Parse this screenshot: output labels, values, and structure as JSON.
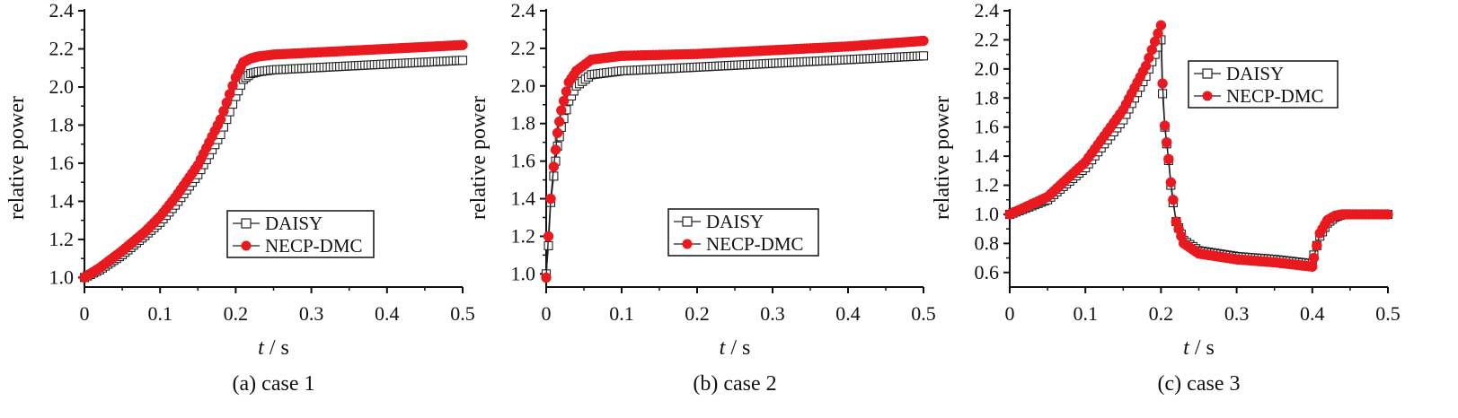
{
  "chart_data": [
    {
      "type": "line",
      "caption": "(a) case 1",
      "xlabel_var": "t",
      "xlabel_unit": " / s",
      "ylabel": "relative power",
      "xlim": [
        0,
        0.5
      ],
      "ylim": [
        0.95,
        2.4
      ],
      "xticks": [
        0,
        0.1,
        0.2,
        0.3,
        0.4,
        0.5
      ],
      "xtick_labels": [
        "0",
        "0.1",
        "0.2",
        "0.3",
        "0.4",
        "0.5"
      ],
      "yticks": [
        1.0,
        1.2,
        1.4,
        1.6,
        1.8,
        2.0,
        2.2,
        2.4
      ],
      "ytick_labels": [
        "1.0",
        "1.2",
        "1.4",
        "1.6",
        "1.8",
        "2.0",
        "2.2",
        "2.4"
      ],
      "legend_position": "lower-right",
      "series": [
        {
          "name": "DAISY",
          "marker": "open-square",
          "color": "#222222",
          "x": [
            0,
            0.02,
            0.05,
            0.08,
            0.1,
            0.12,
            0.15,
            0.18,
            0.2,
            0.21,
            0.22,
            0.23,
            0.25,
            0.3,
            0.35,
            0.4,
            0.45,
            0.5
          ],
          "y": [
            1.0,
            1.04,
            1.12,
            1.22,
            1.29,
            1.38,
            1.54,
            1.75,
            1.95,
            2.04,
            2.07,
            2.08,
            2.09,
            2.1,
            2.11,
            2.12,
            2.13,
            2.14
          ]
        },
        {
          "name": "NECP-DMC",
          "marker": "filled-circle",
          "color": "#e8191f",
          "x": [
            0,
            0.02,
            0.05,
            0.08,
            0.1,
            0.12,
            0.15,
            0.18,
            0.2,
            0.21,
            0.22,
            0.23,
            0.25,
            0.3,
            0.35,
            0.4,
            0.45,
            0.5
          ],
          "y": [
            1.0,
            1.05,
            1.14,
            1.24,
            1.32,
            1.42,
            1.59,
            1.83,
            2.05,
            2.13,
            2.15,
            2.16,
            2.17,
            2.18,
            2.19,
            2.2,
            2.21,
            2.22
          ]
        }
      ]
    },
    {
      "type": "line",
      "caption": "(b) case 2",
      "xlabel_var": "t",
      "xlabel_unit": " / s",
      "ylabel": "relative power",
      "xlim": [
        0,
        0.5
      ],
      "ylim": [
        0.93,
        2.4
      ],
      "xticks": [
        0,
        0.1,
        0.2,
        0.3,
        0.4,
        0.5
      ],
      "xtick_labels": [
        "0",
        "0.1",
        "0.2",
        "0.3",
        "0.4",
        "0.5"
      ],
      "yticks": [
        1.0,
        1.2,
        1.4,
        1.6,
        1.8,
        2.0,
        2.2,
        2.4
      ],
      "ytick_labels": [
        "1.0",
        "1.2",
        "1.4",
        "1.6",
        "1.8",
        "2.0",
        "2.2",
        "2.4"
      ],
      "legend_position": "lower-right",
      "series": [
        {
          "name": "DAISY",
          "marker": "open-square",
          "color": "#222222",
          "x": [
            0,
            0.003,
            0.006,
            0.01,
            0.015,
            0.02,
            0.03,
            0.04,
            0.06,
            0.1,
            0.2,
            0.3,
            0.4,
            0.5
          ],
          "y": [
            1.0,
            1.15,
            1.38,
            1.52,
            1.68,
            1.78,
            1.92,
            2.0,
            2.06,
            2.08,
            2.1,
            2.12,
            2.14,
            2.16
          ]
        },
        {
          "name": "NECP-DMC",
          "marker": "filled-circle",
          "color": "#e8191f",
          "x": [
            0,
            0.003,
            0.006,
            0.01,
            0.015,
            0.02,
            0.03,
            0.04,
            0.06,
            0.1,
            0.2,
            0.3,
            0.4,
            0.5
          ],
          "y": [
            0.98,
            1.2,
            1.4,
            1.57,
            1.75,
            1.87,
            2.02,
            2.08,
            2.14,
            2.16,
            2.17,
            2.19,
            2.21,
            2.24
          ]
        }
      ]
    },
    {
      "type": "line",
      "caption": "(c) case 3",
      "xlabel_var": "t",
      "xlabel_unit": " / s",
      "ylabel": "relative power",
      "xlim": [
        0,
        0.5
      ],
      "ylim": [
        0.5,
        2.4
      ],
      "xticks": [
        0,
        0.1,
        0.2,
        0.3,
        0.4,
        0.5
      ],
      "xtick_labels": [
        "0",
        "0.1",
        "0.2",
        "0.3",
        "0.4",
        "0.5"
      ],
      "yticks": [
        0.6,
        0.8,
        1.0,
        1.2,
        1.4,
        1.6,
        1.8,
        2.0,
        2.2,
        2.4
      ],
      "ytick_labels": [
        "0.6",
        "0.8",
        "1.0",
        "1.2",
        "1.4",
        "1.6",
        "1.8",
        "2.0",
        "2.2",
        "2.4"
      ],
      "legend_position": "top-right",
      "series": [
        {
          "name": "DAISY",
          "marker": "open-square",
          "color": "#222222",
          "x": [
            0,
            0.05,
            0.1,
            0.15,
            0.18,
            0.2,
            0.202,
            0.205,
            0.21,
            0.213,
            0.216,
            0.22,
            0.23,
            0.25,
            0.3,
            0.35,
            0.4,
            0.402,
            0.41,
            0.42,
            0.43,
            0.44,
            0.45,
            0.5
          ],
          "y": [
            1.0,
            1.1,
            1.32,
            1.65,
            1.95,
            2.2,
            1.83,
            1.6,
            1.37,
            1.2,
            1.08,
            0.95,
            0.82,
            0.75,
            0.71,
            0.69,
            0.66,
            0.72,
            0.85,
            0.94,
            0.98,
            1.0,
            1.0,
            1.0
          ]
        },
        {
          "name": "NECP-DMC",
          "marker": "filled-circle",
          "color": "#e8191f",
          "x": [
            0,
            0.05,
            0.1,
            0.15,
            0.18,
            0.2,
            0.202,
            0.205,
            0.21,
            0.213,
            0.216,
            0.22,
            0.23,
            0.25,
            0.3,
            0.35,
            0.4,
            0.402,
            0.41,
            0.42,
            0.43,
            0.44,
            0.45,
            0.5
          ],
          "y": [
            1.0,
            1.12,
            1.36,
            1.72,
            2.02,
            2.3,
            1.9,
            1.61,
            1.38,
            1.22,
            1.1,
            0.95,
            0.8,
            0.73,
            0.69,
            0.67,
            0.64,
            0.7,
            0.87,
            0.96,
            0.99,
            1.0,
            1.0,
            1.0
          ]
        }
      ]
    }
  ]
}
